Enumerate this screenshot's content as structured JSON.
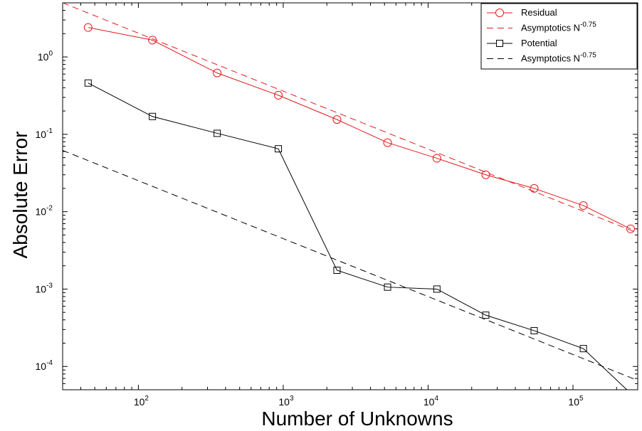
{
  "chart_data": {
    "type": "line",
    "title": "",
    "xlabel": "Number of Unknowns",
    "ylabel": "Absolute Error",
    "xscale": "log",
    "yscale": "log",
    "xlim": [
      30,
      280000
    ],
    "ylim": [
      5e-05,
      5
    ],
    "grid": false,
    "legend_position": "top-right",
    "x_ticks": [
      {
        "value": 100,
        "base": "10",
        "exp": "2"
      },
      {
        "value": 1000,
        "base": "10",
        "exp": "3"
      },
      {
        "value": 10000,
        "base": "10",
        "exp": "4"
      },
      {
        "value": 100000,
        "base": "10",
        "exp": "5"
      }
    ],
    "y_ticks": [
      {
        "value": 1,
        "base": "10",
        "exp": "0"
      },
      {
        "value": 0.1,
        "base": "10",
        "exp": "-1"
      },
      {
        "value": 0.01,
        "base": "10",
        "exp": "-2"
      },
      {
        "value": 0.001,
        "base": "10",
        "exp": "-3"
      },
      {
        "value": 0.0001,
        "base": "10",
        "exp": "-4"
      }
    ],
    "series": [
      {
        "name": "Residual",
        "color": "#e31a1c",
        "marker": "circle",
        "dash": "solid",
        "x": [
          45,
          125,
          350,
          925,
          2350,
          5250,
          11500,
          25000,
          54000,
          118000,
          250000
        ],
        "y": [
          2.4,
          1.65,
          0.62,
          0.32,
          0.155,
          0.078,
          0.049,
          0.03,
          0.02,
          0.012,
          0.006
        ]
      },
      {
        "name": "Asymptotics N",
        "name_sup": "-0.75",
        "color": "#e31a1c",
        "marker": "none",
        "dash": "dashed",
        "x": [
          30,
          280000
        ],
        "y": [
          5.0,
          0.0053
        ]
      },
      {
        "name": "Potential",
        "color": "#000000",
        "marker": "square",
        "dash": "solid",
        "x": [
          45,
          125,
          350,
          925,
          2350,
          5250,
          11500,
          25000,
          54000,
          118000,
          250000
        ],
        "y": [
          0.46,
          0.17,
          0.103,
          0.065,
          0.00175,
          0.00106,
          0.001,
          0.00046,
          0.00029,
          0.00017,
          4.5e-05
        ]
      },
      {
        "name": "Asymptotics N",
        "name_sup": "-0.75",
        "color": "#000000",
        "marker": "none",
        "dash": "dashed",
        "x": [
          30,
          280000
        ],
        "y": [
          0.062,
          6.6e-05
        ]
      }
    ]
  }
}
